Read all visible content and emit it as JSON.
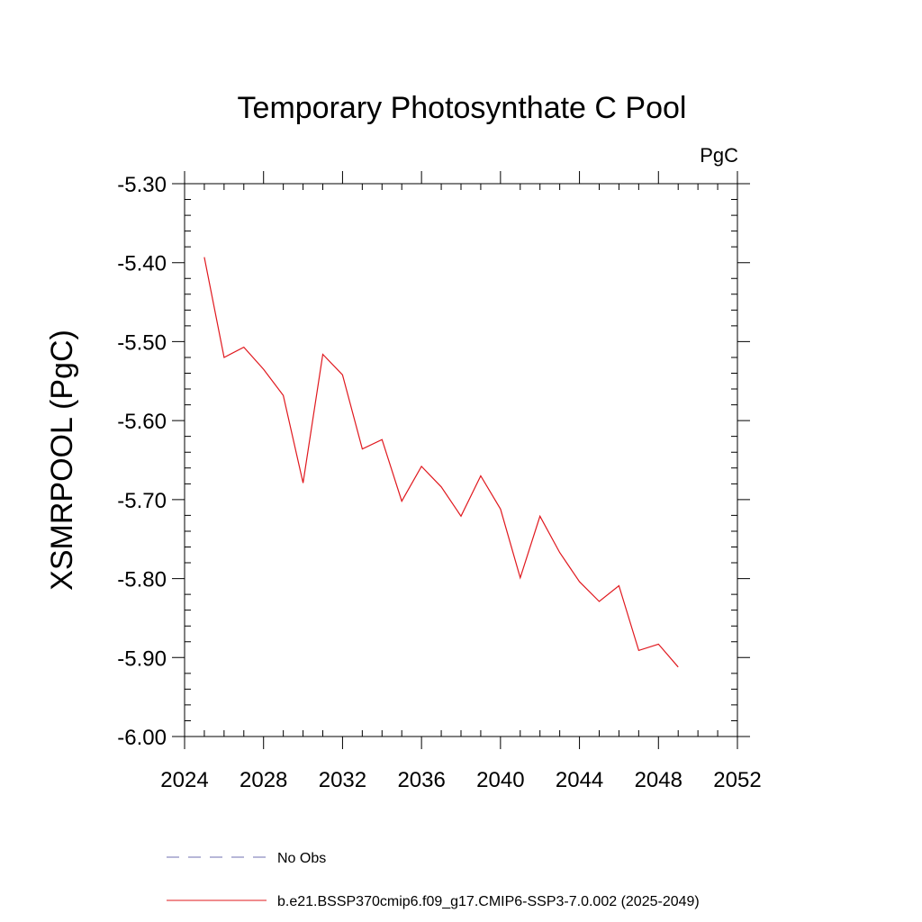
{
  "chart_data": {
    "type": "line",
    "title": "Temporary Photosynthate C Pool",
    "units": "PgC",
    "xlabel": "",
    "ylabel": "XSMRPOOL  (PgC)",
    "xlim": [
      2024,
      2052
    ],
    "ylim": [
      -6.0,
      -5.3
    ],
    "xticks": [
      2024,
      2028,
      2032,
      2036,
      2040,
      2044,
      2048,
      2052
    ],
    "yticks": [
      -6.0,
      -5.9,
      -5.8,
      -5.7,
      -5.6,
      -5.5,
      -5.4,
      -5.3
    ],
    "ytick_labels": [
      "-6.00",
      "-5.90",
      "-5.80",
      "-5.70",
      "-5.60",
      "-5.50",
      "-5.40",
      "-5.30"
    ],
    "grid": false,
    "legend_position": "bottom",
    "series": [
      {
        "name": "No Obs",
        "color": "#6f6fb0",
        "style": "dashed",
        "x": [],
        "y": []
      },
      {
        "name": "b.e21.BSSP370cmip6.f09_g17.CMIP6-SSP3-7.0.002 (2025-2049)",
        "color": "#e0181e",
        "style": "solid",
        "x": [
          2025,
          2026,
          2027,
          2028,
          2029,
          2030,
          2031,
          2032,
          2033,
          2034,
          2035,
          2036,
          2037,
          2038,
          2039,
          2040,
          2041,
          2042,
          2043,
          2044,
          2045,
          2046,
          2047,
          2048,
          2049
        ],
        "y": [
          -5.393,
          -5.52,
          -5.507,
          -5.535,
          -5.568,
          -5.679,
          -5.516,
          -5.542,
          -5.636,
          -5.624,
          -5.702,
          -5.658,
          -5.684,
          -5.721,
          -5.67,
          -5.712,
          -5.799,
          -5.721,
          -5.767,
          -5.804,
          -5.829,
          -5.809,
          -5.891,
          -5.883,
          -5.912
        ]
      }
    ]
  }
}
